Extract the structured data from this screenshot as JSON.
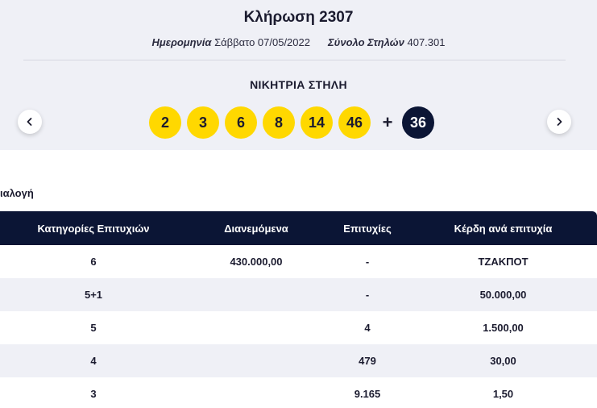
{
  "draw": {
    "title": "Κλήρωση 2307",
    "date_label": "Ημερομηνία",
    "date_value": "Σάββατο 07/05/2022",
    "columns_label": "Σύνολο Στηλών",
    "columns_value": "407.301"
  },
  "winning": {
    "label": "ΝΙΚΗΤΡΙΑ ΣΤΗΛΗ",
    "numbers": [
      "2",
      "3",
      "6",
      "8",
      "14",
      "46"
    ],
    "plus": "+",
    "joker": "36"
  },
  "nav": {
    "prev_icon": "chevron-left-icon",
    "next_icon": "chevron-right-icon"
  },
  "section": {
    "label": "ιαλογή"
  },
  "table": {
    "headers": [
      "Κατηγορίες Επιτυχιών",
      "Διανεμόμενα",
      "Επιτυχίες",
      "Κέρδη ανά επιτυχία"
    ],
    "rows": [
      [
        "6",
        "430.000,00",
        "-",
        "ΤΖΑΚΠΟΤ"
      ],
      [
        "5+1",
        "",
        "-",
        "50.000,00"
      ],
      [
        "5",
        "",
        "4",
        "1.500,00"
      ],
      [
        "4",
        "",
        "479",
        "30,00"
      ],
      [
        "3",
        "",
        "9.165",
        "1,50"
      ]
    ]
  },
  "colors": {
    "ball": "#ffd800",
    "joker": "#0b1535",
    "header": "#0b1535",
    "band": "#eff0f6"
  }
}
